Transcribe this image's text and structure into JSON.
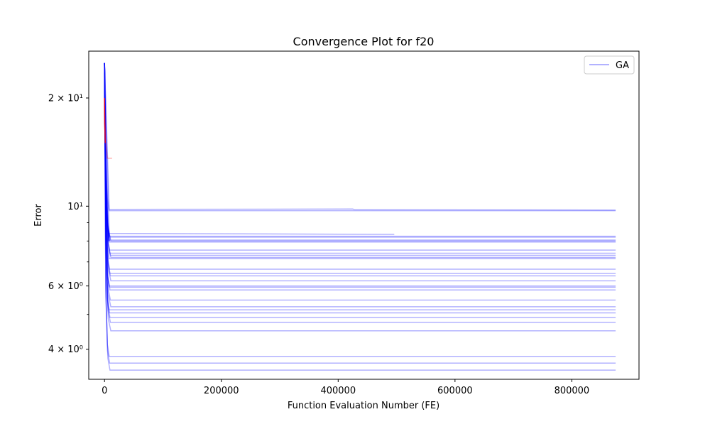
{
  "chart_data": {
    "type": "line",
    "title": "Convergence Plot for f20",
    "xlabel": "Function Evaluation Number (FE)",
    "ylabel": "Error",
    "x_scale": "linear",
    "y_scale": "log",
    "xlim": [
      -27000,
      915000
    ],
    "ylim": [
      3.3,
      27.0
    ],
    "x_ticks": [
      0,
      200000,
      400000,
      600000,
      800000
    ],
    "x_tick_labels": [
      "0",
      "200000",
      "400000",
      "600000",
      "800000"
    ],
    "y_ticks": [
      4,
      6,
      10,
      20
    ],
    "y_tick_labels": [
      "4 × 10⁰",
      "6 × 10⁰",
      "10¹",
      "2 × 10¹"
    ],
    "y_minor_ticks": [
      3,
      5,
      7,
      8,
      9
    ],
    "grid": false,
    "legend": {
      "position": "top-right",
      "entries": [
        {
          "label": "GA",
          "color": "#0000ff"
        }
      ]
    },
    "series_color": "#0000ff",
    "series_alpha": 0.3,
    "start_fe": 0,
    "start_error": 25.0,
    "knee_fe": 8000,
    "max_fe": 875000,
    "final_errors": [
      9.72,
      8.25,
      8.2,
      8.05,
      8.0,
      7.95,
      7.55,
      7.4,
      7.3,
      7.2,
      7.15,
      6.68,
      6.5,
      6.4,
      6.2,
      6.0,
      5.95,
      5.85,
      5.48,
      5.25,
      5.15,
      5.05,
      4.9,
      4.75,
      4.5,
      3.82,
      3.66,
      3.5
    ],
    "short_runs": [
      {
        "fe": [
          0,
          8000,
          425000,
          428000,
          875000
        ],
        "error": [
          25.0,
          9.8,
          9.82,
          9.78,
          9.76
        ]
      },
      {
        "fe": [
          0,
          8000,
          496000
        ],
        "error": [
          25.0,
          8.4,
          8.35
        ]
      }
    ],
    "highlight_runs": [
      {
        "name": "",
        "color": "#0000ff",
        "alpha": 1.0,
        "fe": [
          0,
          500,
          1500,
          3000,
          5000,
          8000
        ],
        "error": [
          23.5,
          17.0,
          13.0,
          10.5,
          9.0,
          8.0
        ]
      },
      {
        "name": "",
        "color": "#ff0000",
        "alpha": 0.8,
        "fe": [
          0,
          400,
          1200
        ],
        "error": [
          20.0,
          17.0,
          15.0
        ]
      },
      {
        "name": "",
        "color": "#ff0000",
        "alpha": 0.3,
        "fe": [
          0,
          2000,
          5000,
          13000
        ],
        "error": [
          19.0,
          15.0,
          13.6,
          13.6
        ]
      }
    ]
  }
}
